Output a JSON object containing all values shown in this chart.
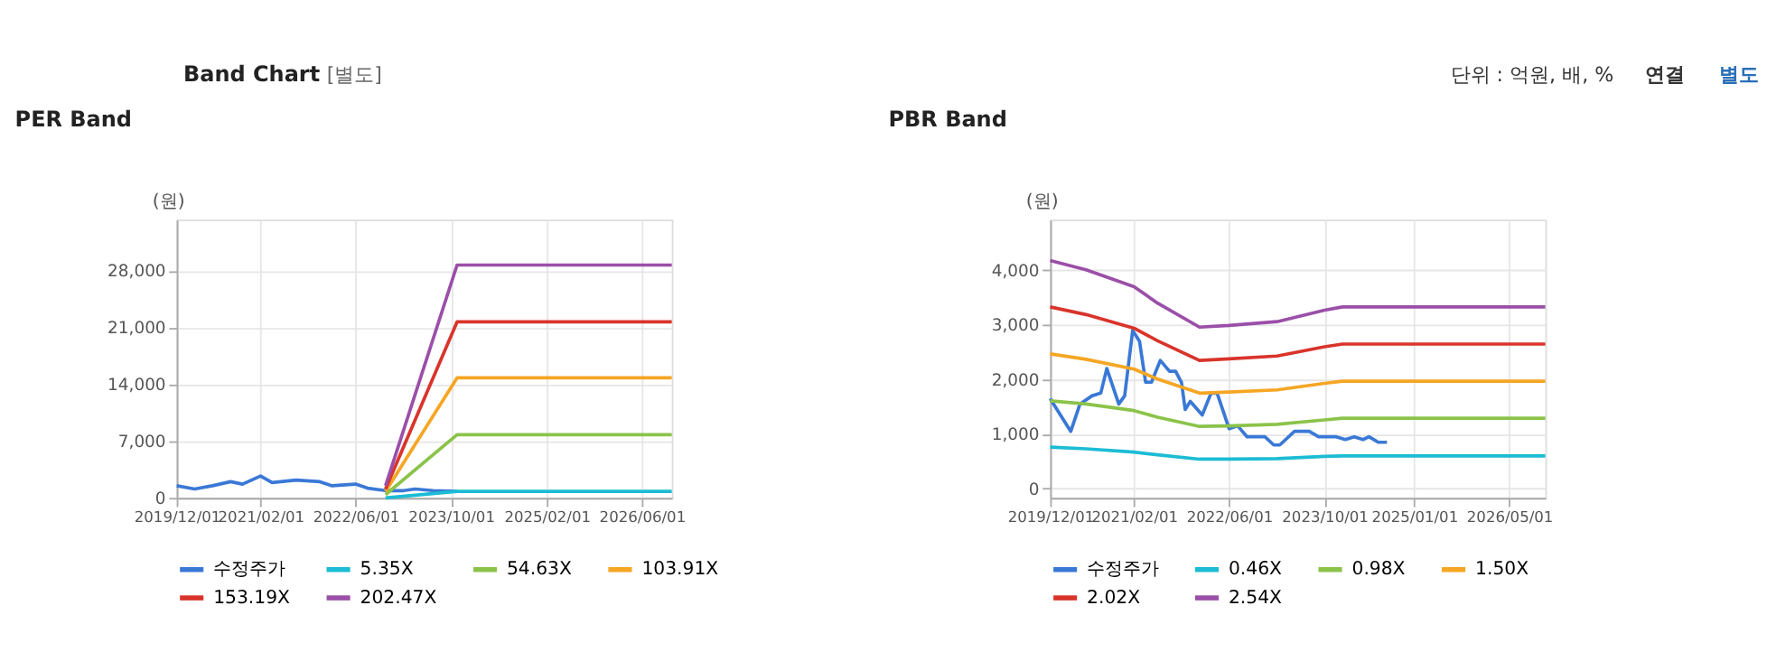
{
  "chart_data": [
    {
      "type": "line",
      "title": "PER Band",
      "annotations": [
        "Band Chart",
        "[별도]",
        "단위 : 억원, 배, %",
        "연결",
        "별도"
      ],
      "ylabel": "(원)",
      "xlim": [
        "2019-12-01",
        "2026-11-01"
      ],
      "ylim": [
        0,
        34300
      ],
      "yticks": [
        {
          "value": 0,
          "label": "0"
        },
        {
          "value": 7000,
          "label": "7,000"
        },
        {
          "value": 14000,
          "label": "14,000"
        },
        {
          "value": 21000,
          "label": "21,000"
        },
        {
          "value": 28000,
          "label": "28,000"
        }
      ],
      "xticks": [
        {
          "value": "2019-12-01",
          "label": "2019/12/01"
        },
        {
          "value": "2021-02-01",
          "label": "2021/02/01"
        },
        {
          "value": "2022-06-01",
          "label": "2022/06/01"
        },
        {
          "value": "2023-10-01",
          "label": "2023/10/01"
        },
        {
          "value": "2025-02-01",
          "label": "2025/02/01"
        },
        {
          "value": "2026-06-01",
          "label": "2026/06/01"
        }
      ],
      "grid": true,
      "legend": "bottom",
      "series": [
        {
          "name": "수정주가",
          "color": "#3a78d6",
          "x": [
            "2019-12-01",
            "2020-03-01",
            "2020-06-01",
            "2020-09-01",
            "2020-11-01",
            "2021-02-01",
            "2021-04-01",
            "2021-08-01",
            "2021-12-01",
            "2022-02-01",
            "2022-06-01",
            "2022-08-01",
            "2022-11-01",
            "2023-02-01",
            "2023-04-01",
            "2023-07-01",
            "2023-11-01"
          ],
          "values": [
            1500,
            1100,
            1500,
            2000,
            1700,
            2700,
            1900,
            2200,
            2000,
            1500,
            1700,
            1200,
            900,
            900,
            1100,
            900,
            800
          ]
        },
        {
          "name": "5.35X",
          "color": "#1bbcd4",
          "x": [
            "2022-11-01",
            "2023-11-01",
            "2026-11-01"
          ],
          "values": [
            0,
            800,
            800
          ]
        },
        {
          "name": "54.63X",
          "color": "#8bc34a",
          "x": [
            "2022-11-01",
            "2023-11-01",
            "2026-11-01"
          ],
          "values": [
            400,
            7800,
            7800
          ]
        },
        {
          "name": "103.91X",
          "color": "#f5a623",
          "x": [
            "2022-11-01",
            "2023-11-01",
            "2026-11-01"
          ],
          "values": [
            800,
            14800,
            14800
          ]
        },
        {
          "name": "153.19X",
          "color": "#d9342b",
          "x": [
            "2022-11-01",
            "2023-11-01",
            "2026-11-01"
          ],
          "values": [
            1100,
            21700,
            21700
          ]
        },
        {
          "name": "202.47X",
          "color": "#9b4fa8",
          "x": [
            "2022-11-01",
            "2023-11-01",
            "2026-11-01"
          ],
          "values": [
            1500,
            28700,
            28700
          ]
        }
      ]
    },
    {
      "type": "line",
      "title": "PBR Band",
      "ylabel": "(원)",
      "xlim": [
        "2019-12-01",
        "2026-11-01"
      ],
      "ylim": [
        -170,
        4930
      ],
      "yticks": [
        {
          "value": 0,
          "label": "0"
        },
        {
          "value": 1000,
          "label": "1,000"
        },
        {
          "value": 2000,
          "label": "2,000"
        },
        {
          "value": 3000,
          "label": "3,000"
        },
        {
          "value": 4000,
          "label": "4,000"
        }
      ],
      "xticks": [
        {
          "value": "2019-12-01",
          "label": "2019/12/01"
        },
        {
          "value": "2021-02-01",
          "label": "2021/02/01"
        },
        {
          "value": "2022-06-01",
          "label": "2022/06/01"
        },
        {
          "value": "2023-10-01",
          "label": "2023/10/01"
        },
        {
          "value": "2025-01-01",
          "label": "2025/01/01"
        },
        {
          "value": "2026-05-01",
          "label": "2026/05/01"
        }
      ],
      "grid": true,
      "legend": "bottom",
      "series": [
        {
          "name": "수정주가",
          "color": "#3a78d6",
          "x": [
            "2019-12-01",
            "2020-03-15",
            "2020-05-01",
            "2020-07-01",
            "2020-08-15",
            "2020-09-15",
            "2020-11-15",
            "2020-12-15",
            "2021-01-25",
            "2021-03-01",
            "2021-04-01",
            "2021-05-01",
            "2021-06-15",
            "2021-08-01",
            "2021-09-01",
            "2021-10-01",
            "2021-10-20",
            "2021-11-15",
            "2022-01-15",
            "2022-03-01",
            "2022-04-01",
            "2022-06-01",
            "2022-07-15",
            "2022-09-01",
            "2022-12-01",
            "2023-01-15",
            "2023-02-15",
            "2023-05-01",
            "2023-07-15",
            "2023-09-01",
            "2023-12-01",
            "2024-01-15",
            "2024-03-01",
            "2024-04-15",
            "2024-05-15",
            "2024-07-01",
            "2024-08-15"
          ],
          "values": [
            1650,
            1050,
            1550,
            1700,
            1750,
            2200,
            1550,
            1700,
            2900,
            2700,
            1950,
            1950,
            2350,
            2150,
            2150,
            1950,
            1450,
            1600,
            1350,
            1750,
            1750,
            1100,
            1150,
            950,
            950,
            800,
            800,
            1050,
            1050,
            950,
            950,
            900,
            950,
            900,
            950,
            850,
            850
          ]
        },
        {
          "name": "0.46X",
          "color": "#1bbcd4",
          "x": [
            "2019-12-01",
            "2020-06-01",
            "2021-02-01",
            "2021-06-01",
            "2022-01-01",
            "2022-06-01",
            "2023-02-01",
            "2023-10-01",
            "2024-01-01",
            "2026-11-01"
          ],
          "values": [
            760,
            730,
            670,
            620,
            540,
            540,
            550,
            590,
            600,
            600
          ]
        },
        {
          "name": "0.98X",
          "color": "#8bc34a",
          "x": [
            "2019-12-01",
            "2020-06-01",
            "2021-02-01",
            "2021-06-01",
            "2022-01-01",
            "2022-06-01",
            "2023-02-01",
            "2023-10-01",
            "2024-01-01",
            "2026-11-01"
          ],
          "values": [
            1610,
            1550,
            1430,
            1310,
            1140,
            1150,
            1180,
            1260,
            1290,
            1290
          ]
        },
        {
          "name": "1.50X",
          "color": "#f5a623",
          "x": [
            "2019-12-01",
            "2020-06-01",
            "2021-02-01",
            "2021-06-01",
            "2022-01-01",
            "2022-06-01",
            "2023-02-01",
            "2023-10-01",
            "2024-01-01",
            "2026-11-01"
          ],
          "values": [
            2470,
            2370,
            2190,
            2010,
            1750,
            1770,
            1810,
            1930,
            1970,
            1970
          ]
        },
        {
          "name": "2.02X",
          "color": "#d9342b",
          "x": [
            "2019-12-01",
            "2020-06-01",
            "2021-02-01",
            "2021-06-01",
            "2022-01-01",
            "2022-06-01",
            "2023-02-01",
            "2023-10-01",
            "2024-01-01",
            "2026-11-01"
          ],
          "values": [
            3330,
            3190,
            2940,
            2710,
            2350,
            2380,
            2430,
            2600,
            2650,
            2650
          ]
        },
        {
          "name": "2.54X",
          "color": "#9b4fa8",
          "x": [
            "2019-12-01",
            "2020-06-01",
            "2021-02-01",
            "2021-06-01",
            "2022-01-01",
            "2022-06-01",
            "2023-02-01",
            "2023-10-01",
            "2024-01-01",
            "2026-11-01"
          ],
          "values": [
            4180,
            4010,
            3700,
            3400,
            2960,
            2990,
            3060,
            3270,
            3330,
            3330
          ]
        }
      ]
    }
  ]
}
